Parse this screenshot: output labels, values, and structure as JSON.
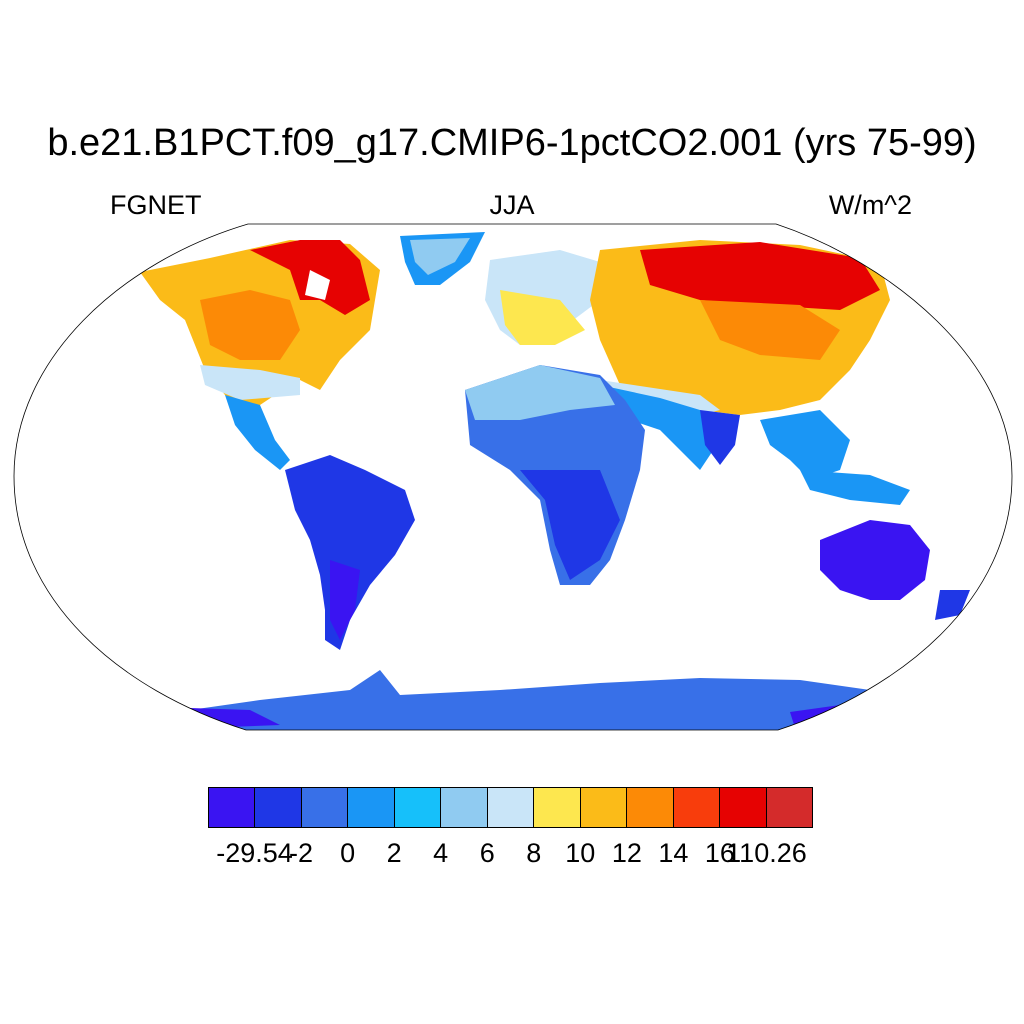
{
  "title": "b.e21.B1PCT.f09_g17.CMIP6-1pctCO2.001 (yrs 75-99)",
  "left_label": "FGNET",
  "center_label": "JJA",
  "right_label": "W/m^2",
  "colorbar": {
    "colors": [
      "#3a14f2",
      "#1f37e6",
      "#3870e8",
      "#1a96f5",
      "#16c0fa",
      "#90cbf1",
      "#c9e5f8",
      "#fde74f",
      "#fbbb18",
      "#fc8a06",
      "#f83d0c",
      "#e60202",
      "#d42b2b"
    ],
    "labels": [
      "-29.54",
      "-2",
      "0",
      "2",
      "4",
      "6",
      "8",
      "10",
      "12",
      "14",
      "16",
      "110.26"
    ]
  },
  "map": {
    "projection": "Robinson",
    "field": "JJA net ground heat flux"
  }
}
